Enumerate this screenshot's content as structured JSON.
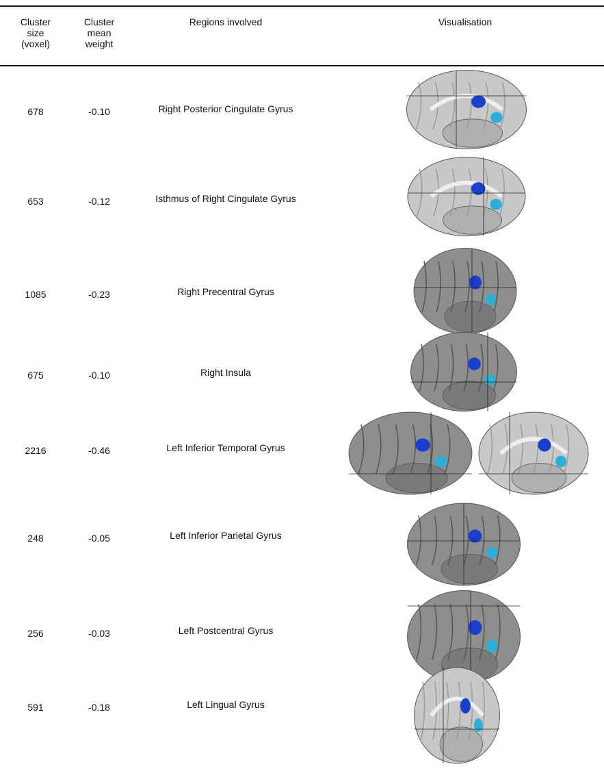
{
  "header": {
    "columns": [
      [
        "Cluster",
        "size",
        "(voxel)"
      ],
      [
        "Cluster",
        "mean",
        "weight"
      ],
      [
        "Regions involved"
      ],
      [
        "Visualisation"
      ]
    ]
  },
  "table": {
    "rows": [
      [
        678,
        "-0.10",
        "Right Posterior Cingulate Gyrus"
      ],
      [
        653,
        "-0.12",
        "Isthmus of Right Cingulate Gyrus"
      ],
      [
        1085,
        "-0.23",
        "Right Precentral Gyrus"
      ],
      [
        675,
        "-0.10",
        "Right Insula"
      ],
      [
        2216,
        "-0.46",
        "Left Inferior Temporal Gyrus"
      ],
      [
        248,
        "-0.05",
        "Left Inferior Parietal Gyrus"
      ],
      [
        256,
        "-0.03",
        "Left Postcentral Gyrus"
      ],
      [
        591,
        "-0.18",
        "Left Lingual Gyrus"
      ]
    ]
  }
}
